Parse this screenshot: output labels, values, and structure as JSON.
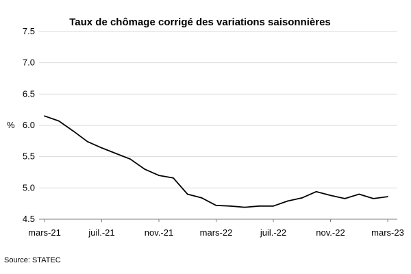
{
  "chart_data": {
    "type": "line",
    "title": "Taux de chômage corrigé des variations saisonnières",
    "ylabel": "%",
    "xlabel": "",
    "ylim": [
      4.5,
      7.5
    ],
    "yticks": [
      "7.5",
      "7.0",
      "6.5",
      "6.0",
      "5.5",
      "5.0",
      "4.5"
    ],
    "x_ticks": [
      "mars-21",
      "juil.-21",
      "nov.-21",
      "mars-22",
      "juil.-22",
      "nov.-22",
      "mars-23"
    ],
    "x": [
      "mars-21",
      "avr.-21",
      "mai-21",
      "juin-21",
      "juil.-21",
      "août-21",
      "sept.-21",
      "oct.-21",
      "nov.-21",
      "déc.-21",
      "janv.-22",
      "févr.-22",
      "mars-22",
      "avr.-22",
      "mai-22",
      "juin-22",
      "juil.-22",
      "août-22",
      "sept.-22",
      "oct.-22",
      "nov.-22",
      "déc.-22",
      "janv.-23",
      "févr.-23",
      "mars-23"
    ],
    "series": [
      {
        "values": [
          6.15,
          6.07,
          5.91,
          5.74,
          5.64,
          5.55,
          5.46,
          5.3,
          5.2,
          5.16,
          4.9,
          4.84,
          4.72,
          4.71,
          4.69,
          4.71,
          4.71,
          4.79,
          4.84,
          4.94,
          4.88,
          4.83,
          4.9,
          4.83,
          4.86
        ]
      }
    ],
    "grid": true,
    "legend": "none",
    "line_color": "#000000",
    "grid_color": "#d9d9d9"
  },
  "source": "Source: STATEC"
}
